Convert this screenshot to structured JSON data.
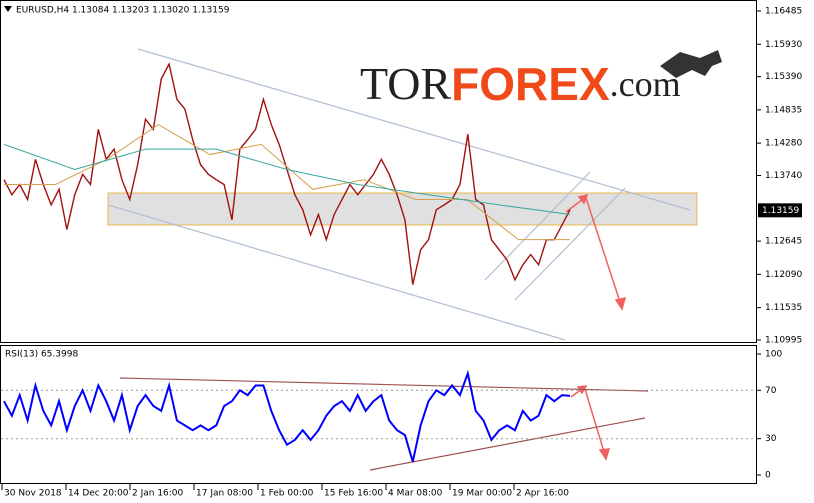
{
  "chart_data": [
    {
      "type": "line",
      "title": "EURUSD,H4  1.13084 1.13203 1.13020 1.13159",
      "logo": {
        "prefix": "TOR",
        "main": "FOREX",
        "suffix": ".com"
      },
      "x_labels": [
        "30 Nov 2018",
        "14 Dec 20:00",
        "2 Jan 16:00",
        "17 Jan 08:00",
        "1 Feb 00:00",
        "15 Feb 16:00",
        "4 Mar 08:00",
        "19 Mar 00:00",
        "2 Apr 16:00"
      ],
      "ylim": [
        1.10962,
        1.16652
      ],
      "yticks": [
        {
          "value": 1.16485,
          "label": "1.16485"
        },
        {
          "value": 1.1593,
          "label": "1.15930"
        },
        {
          "value": 1.1539,
          "label": "1.15390"
        },
        {
          "value": 1.14835,
          "label": "1.14835"
        },
        {
          "value": 1.1428,
          "label": "1.14280"
        },
        {
          "value": 1.1374,
          "label": "1.13740"
        },
        {
          "value": 1.12645,
          "label": "1.12645"
        },
        {
          "value": 1.1209,
          "label": "1.12090"
        },
        {
          "value": 1.11535,
          "label": "1.11535"
        },
        {
          "value": 1.10995,
          "label": "1.10995"
        }
      ],
      "current_price": 1.13159,
      "series": [
        {
          "name": "EURUSD",
          "color": "#a01010",
          "values": [
            1.1367,
            1.1342,
            1.1359,
            1.1334,
            1.1401,
            1.1359,
            1.1325,
            1.1351,
            1.1284,
            1.1342,
            1.1376,
            1.1359,
            1.1451,
            1.1401,
            1.1418,
            1.1367,
            1.1334,
            1.1392,
            1.1468,
            1.1451,
            1.1535,
            1.156,
            1.1501,
            1.1485,
            1.1434,
            1.1392,
            1.1376,
            1.1367,
            1.1359,
            1.13,
            1.1418,
            1.1434,
            1.1451,
            1.1501,
            1.1459,
            1.1426,
            1.1384,
            1.1342,
            1.1317,
            1.1275,
            1.1309,
            1.1267,
            1.1309,
            1.1334,
            1.1359,
            1.1342,
            1.1359,
            1.1376,
            1.1401,
            1.1376,
            1.1342,
            1.13,
            1.1192,
            1.125,
            1.1267,
            1.1317,
            1.1325,
            1.1334,
            1.1359,
            1.1443,
            1.1334,
            1.1325,
            1.1267,
            1.125,
            1.1233,
            1.12,
            1.1225,
            1.1242,
            1.1225,
            1.1267,
            1.1267,
            1.1292,
            1.1317
          ]
        },
        {
          "name": "MA fast",
          "color": "#d4a04a",
          "values": [
            1.1359,
            1.1359,
            1.1401,
            1.1459,
            1.1409,
            1.1426,
            1.1351,
            1.1367,
            1.1334,
            1.1334,
            1.1267,
            1.1267
          ]
        },
        {
          "name": "MA slow",
          "color": "#3aa8a0",
          "values": [
            1.1426,
            1.1384,
            1.1418,
            1.1418,
            1.1384,
            1.1359,
            1.1342,
            1.1325,
            1.1309
          ]
        }
      ]
    },
    {
      "type": "line",
      "title": "RSI(13) 65.3998",
      "ylim": [
        -6.6,
        106.6
      ],
      "yticks": [
        0,
        30,
        70,
        100
      ],
      "series": [
        {
          "name": "RSI",
          "color": "#0000ff",
          "values": [
            61,
            49,
            66,
            45,
            74,
            53,
            41,
            61,
            37,
            57,
            70,
            53,
            74,
            61,
            45,
            66,
            37,
            57,
            66,
            57,
            53,
            74,
            45,
            41,
            37,
            41,
            37,
            41,
            57,
            61,
            70,
            66,
            74,
            74,
            53,
            37,
            25,
            29,
            37,
            29,
            37,
            49,
            57,
            61,
            53,
            66,
            53,
            61,
            66,
            45,
            37,
            33,
            11,
            41,
            61,
            70,
            66,
            74,
            66,
            84,
            53,
            45,
            29,
            37,
            41,
            37,
            53,
            45,
            49,
            66,
            61,
            66,
            65.4
          ]
        }
      ]
    }
  ]
}
